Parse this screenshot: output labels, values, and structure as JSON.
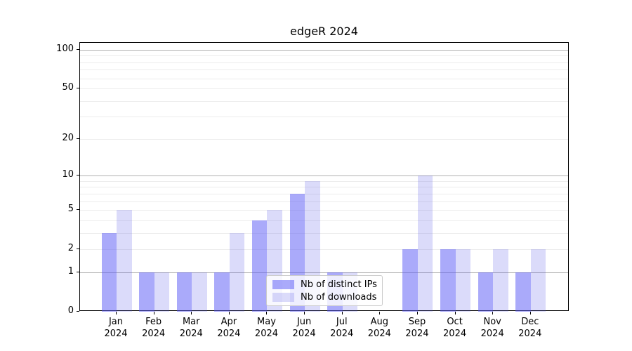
{
  "title": "edgeR 2024",
  "chart_data": {
    "type": "bar",
    "title": "edgeR 2024",
    "xlabel": "",
    "ylabel": "",
    "y_scale": "log1p",
    "ylim": [
      0,
      113
    ],
    "y_ticks": [
      0,
      1,
      2,
      5,
      10,
      20,
      50,
      100
    ],
    "y_grid_major": [
      1,
      10,
      100
    ],
    "y_grid_minor": [
      2,
      3,
      4,
      5,
      6,
      7,
      8,
      9,
      20,
      30,
      40,
      50,
      60,
      70,
      80,
      90
    ],
    "grid": true,
    "legend_position": "lower center",
    "categories": [
      {
        "month": "Jan",
        "year": "2024"
      },
      {
        "month": "Feb",
        "year": "2024"
      },
      {
        "month": "Mar",
        "year": "2024"
      },
      {
        "month": "Apr",
        "year": "2024"
      },
      {
        "month": "May",
        "year": "2024"
      },
      {
        "month": "Jun",
        "year": "2024"
      },
      {
        "month": "Jul",
        "year": "2024"
      },
      {
        "month": "Aug",
        "year": "2024"
      },
      {
        "month": "Sep",
        "year": "2024"
      },
      {
        "month": "Oct",
        "year": "2024"
      },
      {
        "month": "Nov",
        "year": "2024"
      },
      {
        "month": "Dec",
        "year": "2024"
      }
    ],
    "series": [
      {
        "name": "Nb of distinct IPs",
        "color": "rgba(85,85,245,0.5)",
        "values": [
          3,
          1,
          1,
          1,
          4,
          7,
          1,
          0,
          2,
          2,
          1,
          1
        ]
      },
      {
        "name": "Nb of downloads",
        "color": "rgba(85,85,230,0.21)",
        "values": [
          5,
          1,
          1,
          3,
          5,
          9,
          1,
          0,
          10,
          2,
          2,
          2
        ]
      }
    ]
  },
  "legend": {
    "items": [
      {
        "label": "Nb of distinct IPs"
      },
      {
        "label": "Nb of downloads"
      }
    ]
  },
  "colors": {
    "bar_distinct_ips": "rgba(85,85,245,0.5)",
    "bar_downloads": "rgba(85,85,230,0.21)",
    "grid_major": "#b0b0b0",
    "grid_minor": "#ececec",
    "axis": "#000000",
    "legend_border": "#cccccc",
    "legend_bg": "rgba(255,255,255,0.8)"
  }
}
